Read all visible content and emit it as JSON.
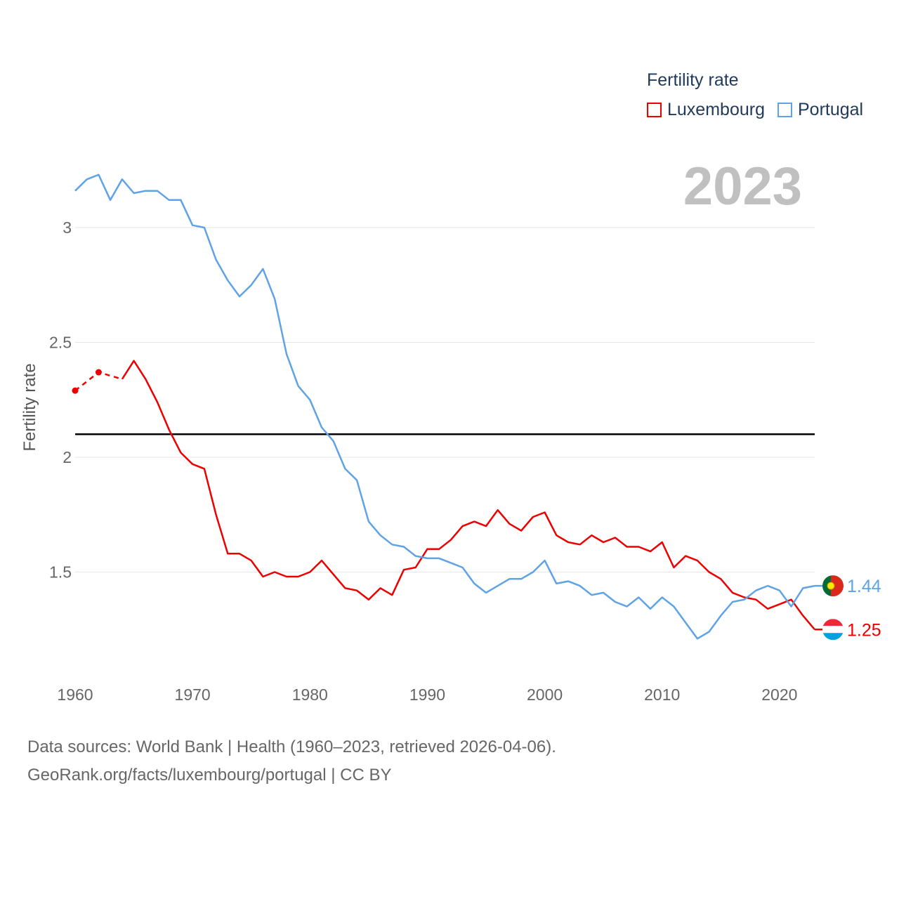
{
  "legend": {
    "title": "Fertility rate",
    "items": [
      {
        "label": "Luxembourg",
        "color": "#ee0000"
      },
      {
        "label": "Portugal",
        "color": "#5fa3e6"
      }
    ]
  },
  "year_label": "2023",
  "source": {
    "line1": "Data sources: World Bank | Health (1960–2023, retrieved 2026-04-06).",
    "line2": "GeoRank.org/facts/luxembourg/portugal | CC BY"
  },
  "chart_data": {
    "type": "line",
    "ylabel": "Fertility rate",
    "xlabel": "",
    "xlim": [
      1960,
      2023
    ],
    "ylim": [
      1.1,
      3.4
    ],
    "x_ticks": [
      1960,
      1970,
      1980,
      1990,
      2000,
      2010,
      2020
    ],
    "y_ticks": [
      1.5,
      2,
      2.5,
      3
    ],
    "y_tick_labels": [
      "1.5",
      "2",
      "2.5",
      "3"
    ],
    "reference_line": {
      "value": 2.1
    },
    "x": [
      1960,
      1961,
      1962,
      1963,
      1964,
      1965,
      1966,
      1967,
      1968,
      1969,
      1970,
      1971,
      1972,
      1973,
      1974,
      1975,
      1976,
      1977,
      1978,
      1979,
      1980,
      1981,
      1982,
      1983,
      1984,
      1985,
      1986,
      1987,
      1988,
      1989,
      1990,
      1991,
      1992,
      1993,
      1994,
      1995,
      1996,
      1997,
      1998,
      1999,
      2000,
      2001,
      2002,
      2003,
      2004,
      2005,
      2006,
      2007,
      2008,
      2009,
      2010,
      2011,
      2012,
      2013,
      2014,
      2015,
      2016,
      2017,
      2018,
      2019,
      2020,
      2021,
      2022,
      2023
    ],
    "series": [
      {
        "name": "Luxembourg",
        "color": "#ee0000",
        "values": [
          2.29,
          null,
          2.37,
          null,
          2.34,
          2.42,
          2.34,
          2.24,
          2.12,
          2.02,
          1.97,
          1.95,
          1.75,
          1.58,
          1.58,
          1.55,
          1.48,
          1.5,
          1.48,
          1.48,
          1.5,
          1.55,
          1.49,
          1.43,
          1.42,
          1.38,
          1.43,
          1.4,
          1.51,
          1.52,
          1.6,
          1.6,
          1.64,
          1.7,
          1.72,
          1.7,
          1.77,
          1.71,
          1.68,
          1.74,
          1.76,
          1.66,
          1.63,
          1.62,
          1.66,
          1.63,
          1.65,
          1.61,
          1.61,
          1.59,
          1.63,
          1.52,
          1.57,
          1.55,
          1.5,
          1.47,
          1.41,
          1.39,
          1.38,
          1.34,
          1.36,
          1.38,
          1.31,
          1.25
        ],
        "dashed_segment": [
          1960,
          1964
        ],
        "markers": [
          1960,
          1962
        ],
        "end_label": "1.25"
      },
      {
        "name": "Portugal",
        "color": "#5fa3e6",
        "values": [
          3.16,
          3.21,
          3.23,
          3.12,
          3.21,
          3.15,
          3.16,
          3.16,
          3.12,
          3.12,
          3.01,
          3.0,
          2.86,
          2.77,
          2.7,
          2.75,
          2.82,
          2.69,
          2.45,
          2.31,
          2.25,
          2.13,
          2.07,
          1.95,
          1.9,
          1.72,
          1.66,
          1.62,
          1.61,
          1.57,
          1.56,
          1.56,
          1.54,
          1.52,
          1.45,
          1.41,
          1.44,
          1.47,
          1.47,
          1.5,
          1.55,
          1.45,
          1.46,
          1.44,
          1.4,
          1.41,
          1.37,
          1.35,
          1.39,
          1.34,
          1.39,
          1.35,
          1.28,
          1.21,
          1.24,
          1.31,
          1.37,
          1.38,
          1.42,
          1.44,
          1.42,
          1.35,
          1.43,
          1.44
        ],
        "end_label": "1.44"
      }
    ]
  }
}
